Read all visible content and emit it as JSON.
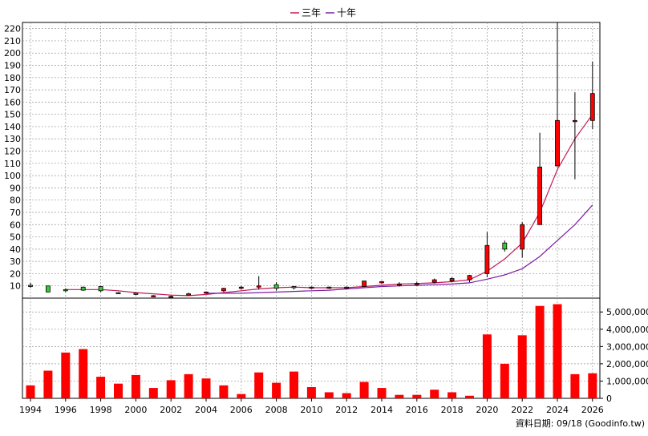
{
  "legend": {
    "items": [
      {
        "label": "三年",
        "color": "#c2185b"
      },
      {
        "label": "十年",
        "color": "#7b1fa2"
      }
    ]
  },
  "source_note": "資料日期: 09/18 (Goodinfo.tw)",
  "colors": {
    "up": "#ff0000",
    "down": "#33cc33",
    "volume": "#ff0000",
    "ma3": "#c2185b",
    "ma10": "#7b1fa2",
    "grid": "#999999"
  },
  "chart_data": [
    {
      "type": "candlestick",
      "title": "",
      "ylim": [
        0,
        225
      ],
      "yticks": [
        10,
        20,
        30,
        40,
        50,
        60,
        70,
        80,
        90,
        100,
        110,
        120,
        130,
        140,
        150,
        160,
        170,
        180,
        190,
        200,
        210,
        220
      ],
      "grid": true,
      "legend_position": "top-center",
      "x": [
        1994,
        1995,
        1996,
        1997,
        1998,
        1999,
        2000,
        2001,
        2002,
        2003,
        2004,
        2005,
        2006,
        2007,
        2008,
        2009,
        2010,
        2011,
        2012,
        2013,
        2014,
        2015,
        2016,
        2017,
        2018,
        2019,
        2020,
        2021,
        2022,
        2023,
        2024,
        2025,
        2026
      ],
      "open": [
        10.5,
        10,
        7,
        9,
        9.5,
        4.5,
        4,
        2,
        1.5,
        3,
        4.5,
        6,
        8.5,
        9,
        11,
        9.5,
        8.5,
        8.5,
        8.5,
        9.5,
        12.5,
        11,
        11,
        13,
        14,
        15,
        20,
        45,
        40,
        60,
        108,
        145,
        145
      ],
      "high": [
        12.5,
        10,
        8,
        9.5,
        10,
        5,
        4.5,
        2.5,
        2,
        4.5,
        5.5,
        8.5,
        10,
        18,
        13,
        10,
        9.5,
        9.5,
        9.5,
        14,
        14,
        13,
        13.5,
        16,
        17,
        19,
        54,
        47,
        62,
        135,
        225,
        168,
        193
      ],
      "low": [
        8.5,
        5,
        5,
        6,
        5,
        3.5,
        2.5,
        1.5,
        1,
        2.5,
        3.5,
        5,
        7,
        7,
        6,
        7,
        7.5,
        7.5,
        7.5,
        9,
        11.5,
        9.5,
        10,
        12,
        13,
        13,
        17,
        38,
        33,
        60,
        107,
        97,
        138
      ],
      "close": [
        9.5,
        5,
        6,
        6.5,
        6,
        4,
        3.5,
        2,
        1.5,
        3.5,
        5,
        8,
        9,
        10,
        8,
        8.5,
        9,
        9,
        9,
        14,
        13.5,
        11.5,
        12,
        15,
        16,
        18.5,
        43,
        40,
        60,
        107,
        145,
        145,
        167
      ],
      "series": [
        {
          "name": "三年",
          "values": [
            null,
            null,
            7,
            7,
            7,
            6,
            4.5,
            3.5,
            2.5,
            2,
            3,
            4.5,
            6,
            7.5,
            8.5,
            9,
            8.5,
            8.5,
            8.5,
            9.5,
            10.5,
            11.5,
            12,
            12.5,
            13.5,
            15,
            22,
            32,
            45,
            70,
            105,
            130,
            150
          ]
        },
        {
          "name": "十年",
          "values": [
            null,
            null,
            null,
            null,
            null,
            null,
            null,
            null,
            null,
            null,
            4,
            4,
            4,
            4.5,
            5,
            5.5,
            6,
            6.5,
            7.5,
            8.5,
            9.5,
            10,
            10.5,
            11,
            11.5,
            12.5,
            15.5,
            19,
            24,
            34,
            47,
            60,
            76
          ]
        }
      ]
    },
    {
      "type": "bar",
      "title": "",
      "ylim": [
        0,
        5800000
      ],
      "yticks": [
        0,
        1000000,
        2000000,
        3000000,
        4000000,
        5000000
      ],
      "ytick_labels": [
        "0",
        "1,000,000",
        "2,000,000",
        "3,000,000",
        "4,000,000",
        "5,000,000"
      ],
      "grid": true,
      "categories": [
        1994,
        1995,
        1996,
        1997,
        1998,
        1999,
        2000,
        2001,
        2002,
        2003,
        2004,
        2005,
        2006,
        2007,
        2008,
        2009,
        2010,
        2011,
        2012,
        2013,
        2014,
        2015,
        2016,
        2017,
        2018,
        2019,
        2020,
        2021,
        2022,
        2023,
        2024,
        2025,
        2026
      ],
      "values": [
        750000,
        1600000,
        2650000,
        2850000,
        1250000,
        850000,
        1350000,
        600000,
        1050000,
        1400000,
        1150000,
        750000,
        250000,
        1500000,
        900000,
        1550000,
        650000,
        350000,
        300000,
        950000,
        600000,
        200000,
        200000,
        500000,
        350000,
        150000,
        3700000,
        2000000,
        3650000,
        5350000,
        5450000,
        1400000,
        1450000
      ],
      "xtick_labels": [
        "1994",
        "1996",
        "1998",
        "2000",
        "2002",
        "2004",
        "2006",
        "2008",
        "2010",
        "2012",
        "2014",
        "2016",
        "2018",
        "2020",
        "2022",
        "2024",
        "2026"
      ]
    }
  ]
}
